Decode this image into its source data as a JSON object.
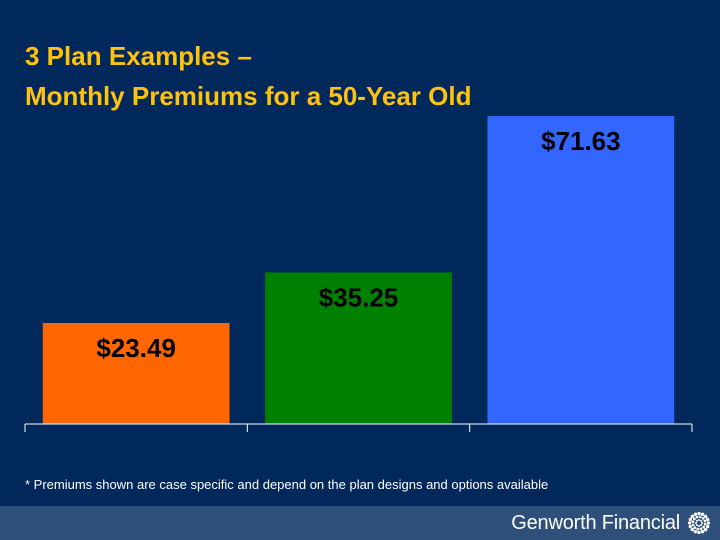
{
  "title_lines": [
    "3 Plan Examples –",
    "Monthly Premiums for a 50-Year Old"
  ],
  "chart_data": {
    "type": "bar",
    "categories": [
      "",
      "",
      ""
    ],
    "values": [
      23.49,
      35.25,
      71.63
    ],
    "data_labels": [
      "$23.49",
      "$35.25",
      "$71.63"
    ],
    "colors": [
      "#ff6600",
      "#008000",
      "#3366ff"
    ],
    "ylim": [
      0,
      80
    ],
    "grid": false,
    "legend": "none"
  },
  "footnote": "* Premiums shown are case specific and depend on the plan designs and options available",
  "brand": {
    "name_first": "Genworth",
    "name_second": "Financial"
  },
  "colors": {
    "background": "#00285a",
    "title": "#ffc20e",
    "footer": "#2d4f7a"
  }
}
